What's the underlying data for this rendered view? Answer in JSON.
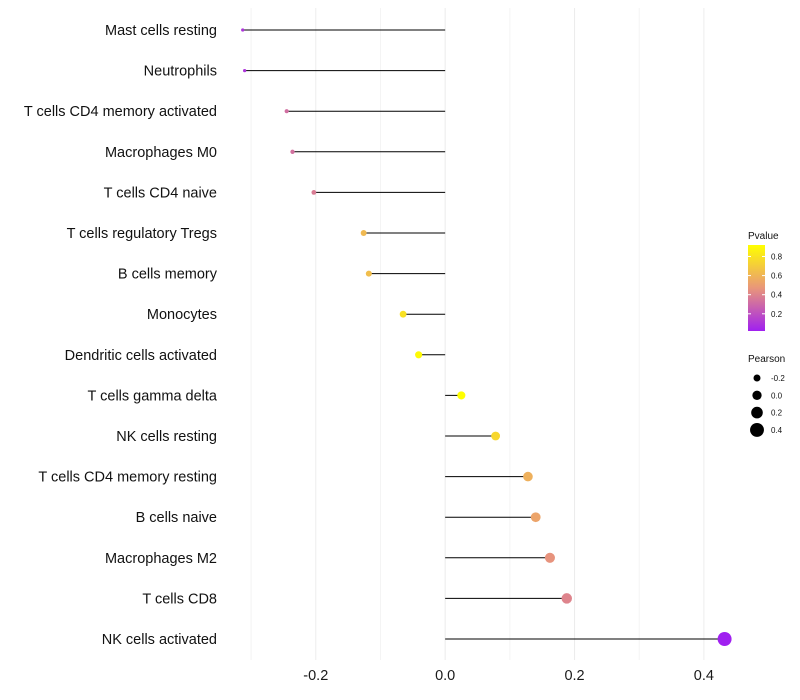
{
  "chart_data": {
    "type": "lollipop",
    "title": "",
    "xlabel": "",
    "ylabel": "",
    "xlim": [
      -0.345,
      0.445
    ],
    "xticks": [
      -0.2,
      0.0,
      0.2,
      0.4
    ],
    "xtick_labels": [
      "-0.2",
      "0.0",
      "0.2",
      "0.4"
    ],
    "grid": true,
    "categories": [
      "Mast cells resting",
      "Neutrophils",
      "T cells CD4 memory activated",
      "Macrophages M0",
      "T cells CD4 naive",
      "T cells regulatory  Tregs ",
      "B cells memory",
      "Monocytes",
      "Dendritic cells activated",
      "T cells gamma delta",
      "NK cells resting",
      "T cells CD4 memory resting",
      "B cells naive",
      "Macrophages M2",
      "T cells CD8",
      "NK cells activated"
    ],
    "pearson": [
      -0.313,
      -0.31,
      -0.245,
      -0.236,
      -0.203,
      -0.126,
      -0.118,
      -0.065,
      -0.041,
      0.025,
      0.078,
      0.128,
      0.14,
      0.162,
      0.188,
      0.432
    ],
    "pvalue": [
      0.1,
      0.1,
      0.32,
      0.33,
      0.37,
      0.62,
      0.64,
      0.79,
      0.9,
      0.92,
      0.75,
      0.58,
      0.53,
      0.46,
      0.4,
      0.02
    ],
    "legend": {
      "placement": "right",
      "color": {
        "title": "Pvalue",
        "range": [
          0.02,
          0.92
        ],
        "ticks": [
          0.2,
          0.4,
          0.6,
          0.8
        ],
        "tick_labels": [
          "0.2",
          "0.4",
          "0.6",
          "0.8"
        ],
        "low_color": "#A020F0",
        "mid_color": "#E9967A",
        "high_color": "#FFFF00"
      },
      "size": {
        "title": "Pearson",
        "values": [
          -0.2,
          0.0,
          0.2,
          0.4
        ],
        "labels": [
          "-0.2",
          "0.0",
          "0.2",
          "0.4"
        ]
      }
    }
  }
}
